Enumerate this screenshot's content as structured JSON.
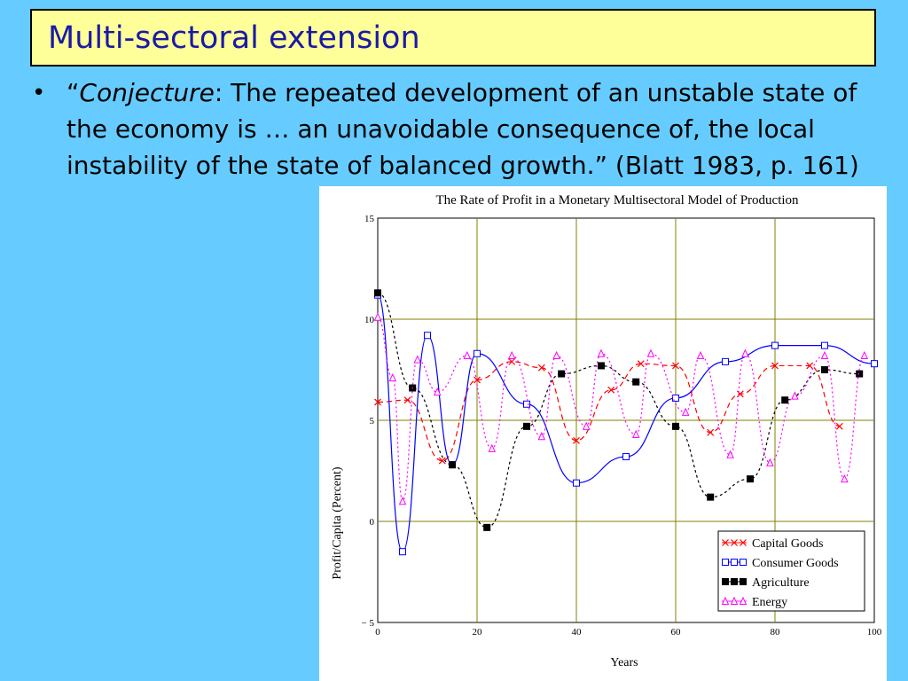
{
  "slide": {
    "title": "Multi-sectoral extension",
    "quote_open": "“",
    "quote_italic": "Conjecture",
    "quote_rest": ": The repeated development of an unstable state of the economy is … an unavoidable consequence of, the local instability of the state of balanced growth.” (Blatt 1983, p. 161)"
  },
  "colors": {
    "background": "#66ccff",
    "title_box": "#ffff99",
    "title_text": "#1a1aa6",
    "grid": "#808000"
  },
  "chart_data": {
    "type": "line",
    "title": "The Rate of Profit in a Monetary Multisectoral Model of Production",
    "xlabel": "Years",
    "ylabel": "Profit/Capita (Percent)",
    "xlim": [
      0,
      100
    ],
    "ylim": [
      -5,
      15
    ],
    "x_ticks": [
      "0",
      "20",
      "40",
      "60",
      "80",
      "100"
    ],
    "y_ticks": [
      "− 5",
      "0",
      "5",
      "10",
      "15"
    ],
    "grid": true,
    "legend_position": "bottom-right",
    "series": [
      {
        "name": "Capital Goods",
        "color": "#ff0000",
        "marker": "x",
        "dash": "6,4",
        "points": [
          [
            0,
            5.9
          ],
          [
            6,
            6.0
          ],
          [
            13,
            3.0
          ],
          [
            20,
            7.0
          ],
          [
            27,
            7.9
          ],
          [
            33,
            7.6
          ],
          [
            40,
            4.0
          ],
          [
            47,
            6.5
          ],
          [
            53,
            7.8
          ],
          [
            60,
            7.7
          ],
          [
            67,
            4.4
          ],
          [
            73,
            6.3
          ],
          [
            80,
            7.7
          ],
          [
            87,
            7.7
          ],
          [
            93,
            4.7
          ]
        ]
      },
      {
        "name": "Consumer Goods",
        "color": "#0000ff",
        "marker": "square-open",
        "dash": "",
        "points": [
          [
            0,
            11.2
          ],
          [
            5,
            -1.5
          ],
          [
            10,
            9.2
          ],
          [
            15,
            2.8
          ],
          [
            20,
            8.3
          ],
          [
            30,
            5.8
          ],
          [
            40,
            1.9
          ],
          [
            50,
            3.2
          ],
          [
            60,
            6.1
          ],
          [
            70,
            7.9
          ],
          [
            80,
            8.7
          ],
          [
            90,
            8.7
          ],
          [
            100,
            7.8
          ]
        ]
      },
      {
        "name": "Agriculture",
        "color": "#000000",
        "marker": "square-filled",
        "dash": "3,3",
        "points": [
          [
            0,
            11.3
          ],
          [
            7,
            6.6
          ],
          [
            15,
            2.8
          ],
          [
            22,
            -0.3
          ],
          [
            30,
            4.7
          ],
          [
            37,
            7.3
          ],
          [
            45,
            7.7
          ],
          [
            52,
            6.9
          ],
          [
            60,
            4.7
          ],
          [
            67,
            1.2
          ],
          [
            75,
            2.1
          ],
          [
            82,
            6.0
          ],
          [
            90,
            7.5
          ],
          [
            97,
            7.3
          ]
        ]
      },
      {
        "name": "Energy",
        "color": "#ff00ff",
        "marker": "triangle-open",
        "dash": "2,3",
        "points": [
          [
            0,
            10.1
          ],
          [
            3,
            7.1
          ],
          [
            5,
            1.0
          ],
          [
            8,
            8.0
          ],
          [
            12,
            6.4
          ],
          [
            18,
            8.2
          ],
          [
            23,
            3.6
          ],
          [
            27,
            8.2
          ],
          [
            33,
            4.2
          ],
          [
            36,
            8.2
          ],
          [
            42,
            4.7
          ],
          [
            45,
            8.3
          ],
          [
            52,
            4.3
          ],
          [
            55,
            8.3
          ],
          [
            62,
            5.4
          ],
          [
            65,
            8.2
          ],
          [
            71,
            3.3
          ],
          [
            74,
            8.3
          ],
          [
            79,
            2.9
          ],
          [
            84,
            6.2
          ],
          [
            90,
            8.2
          ],
          [
            94,
            2.1
          ],
          [
            98,
            8.2
          ]
        ]
      }
    ]
  }
}
